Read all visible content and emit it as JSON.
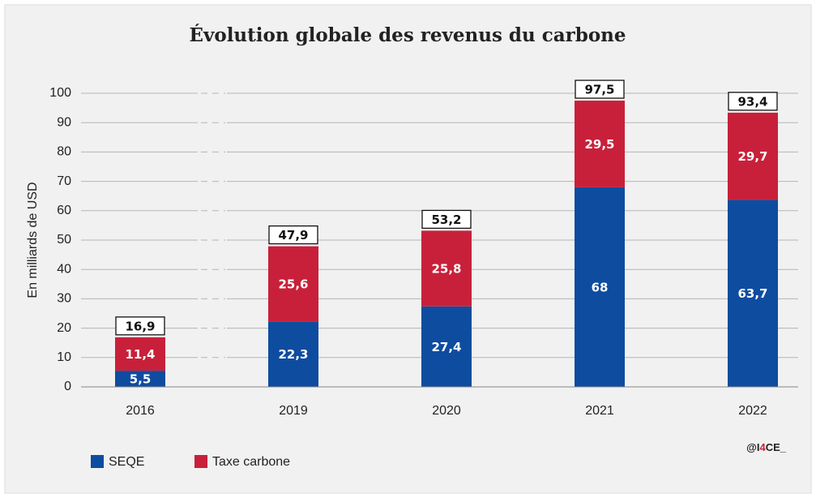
{
  "chart_data": {
    "type": "stacked_bar",
    "title": "Évolution globale des revenus du carbone",
    "y_label": "En milliards de USD",
    "categories": [
      "2016",
      "2019",
      "2020",
      "2021",
      "2022"
    ],
    "series": [
      {
        "name": "SEQE",
        "color": "#0e4ca0",
        "values": [
          5.5,
          22.3,
          27.4,
          68,
          63.7
        ],
        "value_labels": [
          "5,5",
          "22,3",
          "27,4",
          "68",
          "63,7"
        ]
      },
      {
        "name": "Taxe carbone",
        "color": "#c8203a",
        "values": [
          11.4,
          25.6,
          25.8,
          29.5,
          29.7
        ],
        "value_labels": [
          "11,4",
          "25,6",
          "25,8",
          "29,5",
          "29,7"
        ]
      }
    ],
    "totals": [
      16.9,
      47.9,
      53.2,
      97.5,
      93.4
    ],
    "total_labels": [
      "16,9",
      "47,9",
      "53,2",
      "97,5",
      "93,4"
    ],
    "ylim": [
      0,
      100
    ],
    "yticks": [
      0,
      10,
      20,
      30,
      40,
      50,
      60,
      70,
      80,
      90,
      100
    ],
    "grid": true,
    "legend": "bottom-left",
    "credit": [
      "@I",
      "4",
      "CE_"
    ]
  }
}
